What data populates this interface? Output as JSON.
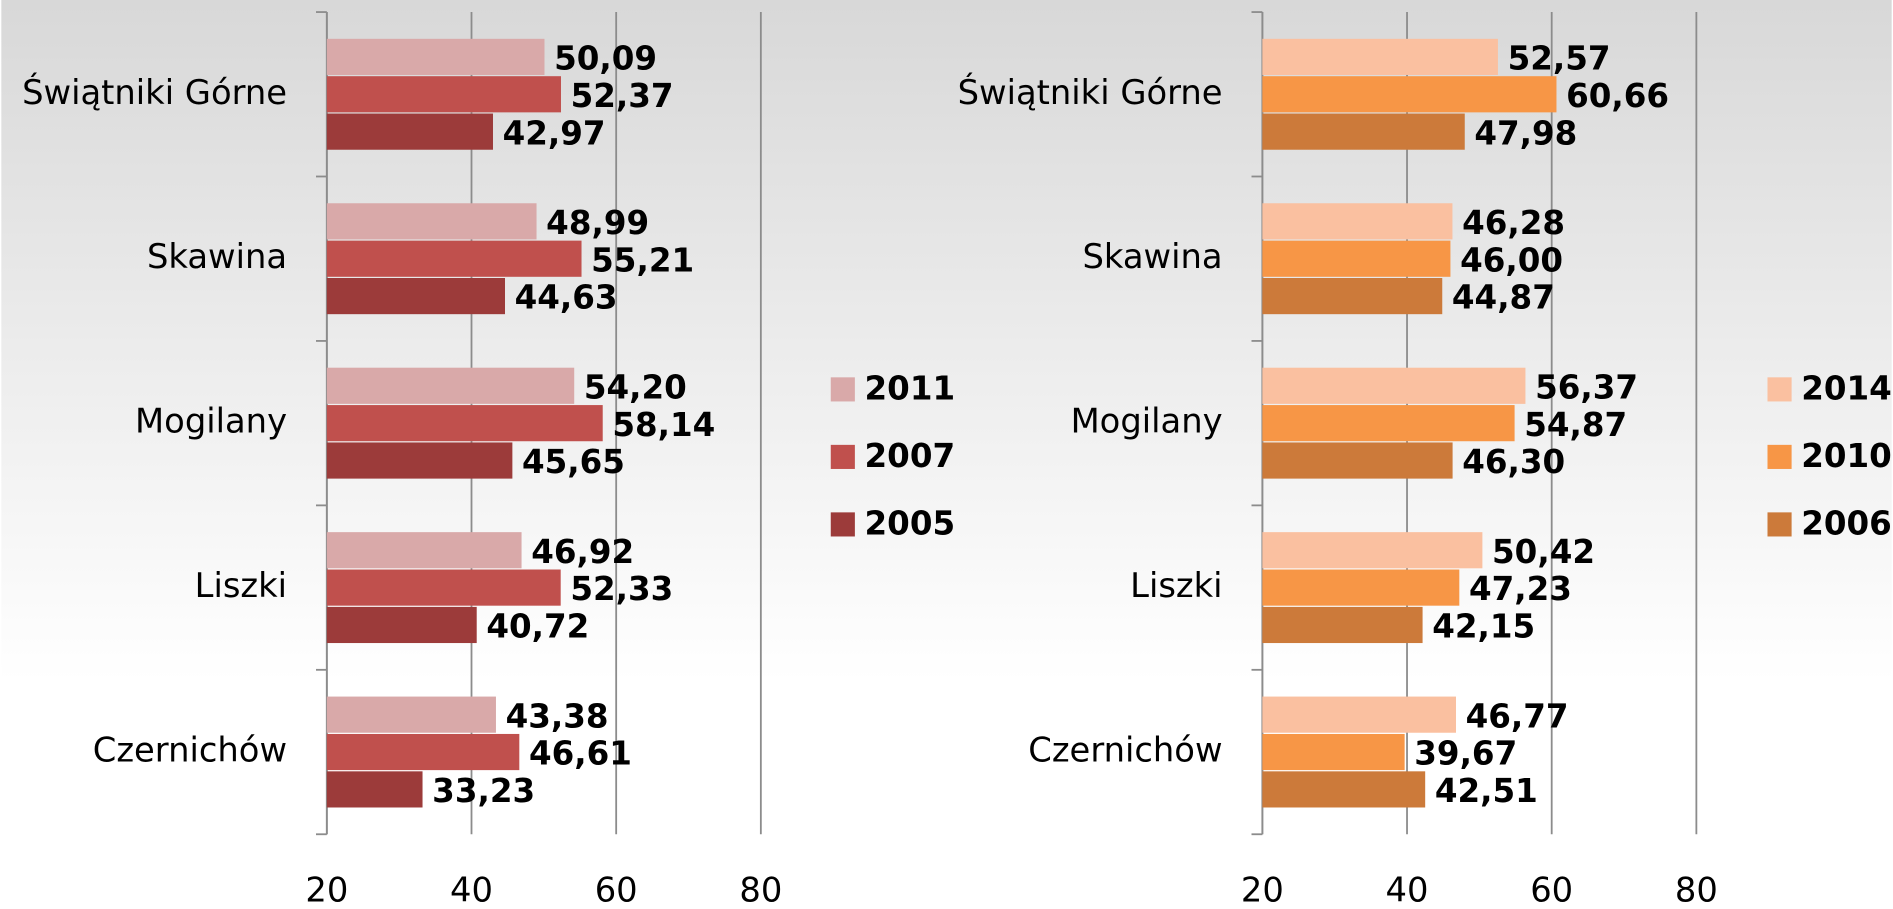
{
  "chart_data": [
    {
      "type": "bar",
      "orientation": "horizontal",
      "categories": [
        "Świątniki Górne",
        "Skawina",
        "Mogilany",
        "Liszki",
        "Czernichów"
      ],
      "series": [
        {
          "name": "2011",
          "color": "#d9a9a9",
          "values": [
            50.09,
            48.99,
            54.2,
            46.92,
            43.38
          ],
          "value_labels": [
            "50,09",
            "48,99",
            "54,20",
            "46,92",
            "43,38"
          ]
        },
        {
          "name": "2007",
          "color": "#c0504d",
          "values": [
            52.37,
            55.21,
            58.14,
            52.33,
            46.61
          ],
          "value_labels": [
            "52,37",
            "55,21",
            "58,14",
            "52,33",
            "46,61"
          ]
        },
        {
          "name": "2005",
          "color": "#9c3b3a",
          "values": [
            42.97,
            44.63,
            45.65,
            40.72,
            33.23
          ],
          "value_labels": [
            "42,97",
            "44,63",
            "45,65",
            "40,72",
            "33,23"
          ]
        }
      ],
      "xlim": [
        20,
        80
      ],
      "xticks": [
        20,
        40,
        60,
        80
      ],
      "grid": true,
      "legend": "right"
    },
    {
      "type": "bar",
      "orientation": "horizontal",
      "categories": [
        "Świątniki Górne",
        "Skawina",
        "Mogilany",
        "Liszki",
        "Czernichów"
      ],
      "series": [
        {
          "name": "2014",
          "color": "#fac0a0",
          "values": [
            52.57,
            46.28,
            56.37,
            50.42,
            46.77
          ],
          "value_labels": [
            "52,57",
            "46,28",
            "56,37",
            "50,42",
            "46,77"
          ]
        },
        {
          "name": "2010",
          "color": "#f79646",
          "values": [
            60.66,
            46.0,
            54.87,
            47.23,
            39.67
          ],
          "value_labels": [
            "60,66",
            "46,00",
            "54,87",
            "47,23",
            "39,67"
          ]
        },
        {
          "name": "2006",
          "color": "#cc7a3a",
          "values": [
            47.98,
            44.87,
            46.3,
            42.15,
            42.51
          ],
          "value_labels": [
            "47,98",
            "44,87",
            "46,30",
            "42,15",
            "42,51"
          ]
        }
      ],
      "xlim": [
        20,
        80
      ],
      "xticks": [
        20,
        40,
        60,
        80
      ],
      "grid": true,
      "legend": "right"
    }
  ]
}
